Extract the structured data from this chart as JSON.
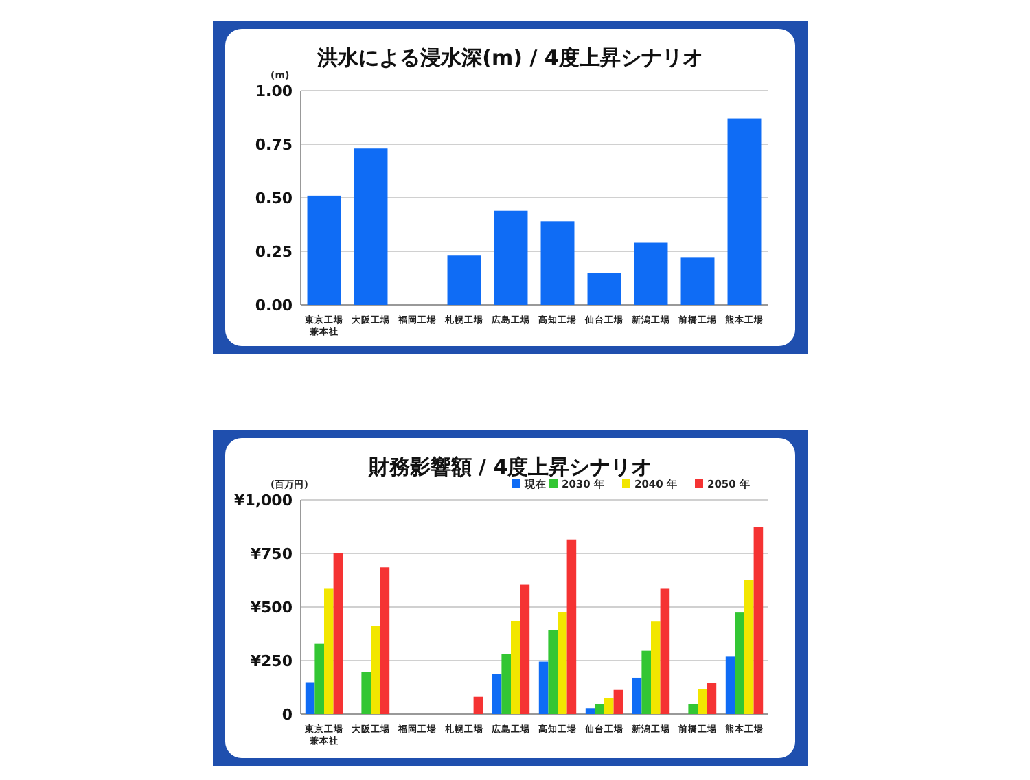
{
  "chart_data": [
    {
      "type": "bar",
      "title": "洪水による浸水深(m) / 4度上昇シナリオ",
      "ylabel": "(m)",
      "categories": [
        "東京工場兼本社",
        "大阪工場",
        "福岡工場",
        "札幌工場",
        "広島工場",
        "高知工場",
        "仙台工場",
        "新潟工場",
        "前橋工場",
        "熊本工場"
      ],
      "values": [
        0.51,
        0.73,
        0,
        0.23,
        0.44,
        0.39,
        0.15,
        0.29,
        0.22,
        0.87
      ],
      "color": "#0f6cf5",
      "ylim": [
        0,
        1
      ],
      "yticks": [
        {
          "value": 0,
          "label": "0.00"
        },
        {
          "value": 0.25,
          "label": "0.25"
        },
        {
          "value": 0.5,
          "label": "0.50"
        },
        {
          "value": 0.75,
          "label": "0.75"
        },
        {
          "value": 1,
          "label": "1.00"
        }
      ],
      "grid": "y",
      "legend": false
    },
    {
      "type": "bar",
      "title": "財務影響額 / 4度上昇シナリオ",
      "ylabel": "(百万円)",
      "categories": [
        "東京工場兼本社",
        "大阪工場",
        "福岡工場",
        "札幌工場",
        "広島工場",
        "高知工場",
        "仙台工場",
        "新潟工場",
        "前橋工場",
        "熊本工場"
      ],
      "series": [
        {
          "name": "現在",
          "color": "#0f6cf5",
          "values": [
            149,
            0,
            0,
            0,
            187,
            245,
            28,
            170,
            0,
            268
          ]
        },
        {
          "name": "2030 年",
          "color": "#33c633",
          "values": [
            328,
            196,
            0,
            0,
            279,
            391,
            47,
            296,
            47,
            474
          ]
        },
        {
          "name": "2040 年",
          "color": "#f2e600",
          "values": [
            585,
            413,
            0,
            0,
            436,
            477,
            74,
            432,
            117,
            628
          ]
        },
        {
          "name": "2050 年",
          "color": "#f53333",
          "values": [
            751,
            685,
            0,
            81,
            604,
            815,
            113,
            585,
            145,
            872
          ]
        }
      ],
      "ylim": [
        0,
        1000
      ],
      "yticks": [
        {
          "value": 0,
          "label": "0"
        },
        {
          "value": 250,
          "label": "¥250"
        },
        {
          "value": 500,
          "label": "¥500"
        },
        {
          "value": 750,
          "label": "¥750"
        },
        {
          "value": 1000,
          "label": "¥1,000"
        }
      ],
      "grid": "y",
      "legend": "top right"
    }
  ]
}
